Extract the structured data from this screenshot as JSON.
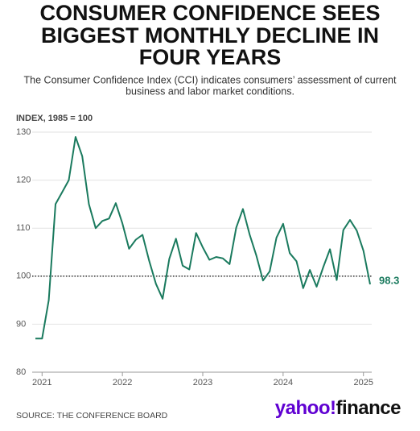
{
  "chart_data": {
    "type": "line",
    "title": [
      "CONSUMER CONFIDENCE SEES",
      "BIGGEST MONTHLY DECLINE IN",
      "FOUR YEARS"
    ],
    "subtitle": [
      "The Consumer Confidence Index (CCI) indicates consumers’ assessment of current",
      "business and labor market conditions."
    ],
    "y_label": "INDEX, 1985 = 100",
    "source": "SOURCE: THE CONFERENCE BOARD",
    "logo": [
      "yahoo!",
      "finance"
    ],
    "annotation": "98.3",
    "hline": 100,
    "x": [
      2020.917,
      2021,
      2021.083,
      2021.167,
      2021.25,
      2021.333,
      2021.417,
      2021.5,
      2021.583,
      2021.667,
      2021.75,
      2021.833,
      2021.917,
      2022,
      2022.083,
      2022.167,
      2022.25,
      2022.333,
      2022.417,
      2022.5,
      2022.583,
      2022.667,
      2022.75,
      2022.833,
      2022.917,
      2023,
      2023.083,
      2023.167,
      2023.25,
      2023.333,
      2023.417,
      2023.5,
      2023.583,
      2023.667,
      2023.75,
      2023.833,
      2023.917,
      2024,
      2024.083,
      2024.167,
      2024.25,
      2024.333,
      2024.417,
      2024.5,
      2024.583,
      2024.667,
      2024.75,
      2024.833,
      2024.917,
      2025,
      2025.083
    ],
    "series": [
      {
        "name": "Consumer Confidence Index",
        "color": "#1a7a5e",
        "values": [
          87,
          87,
          95,
          115,
          117.5,
          120,
          129,
          125,
          115,
          110,
          111.5,
          112,
          115.2,
          111,
          105.7,
          107.6,
          108.6,
          103.2,
          98.4,
          95.3,
          103.6,
          107.8,
          102.2,
          101.4,
          109,
          106,
          103.4,
          104,
          103.7,
          102.5,
          110.1,
          114,
          108.7,
          104.3,
          99.1,
          101,
          108,
          110.9,
          104.8,
          103.1,
          97.5,
          101.3,
          97.8,
          101.9,
          105.6,
          99.2,
          109.6,
          111.7,
          109.5,
          105.3,
          98.3
        ]
      }
    ],
    "xlim": [
      2020.917,
      2025.083
    ],
    "xticks": [
      2021,
      2022,
      2023,
      2024,
      2025
    ],
    "ylim": [
      80,
      130
    ],
    "yticks": [
      80,
      90,
      100,
      110,
      120,
      130
    ],
    "grid": true
  }
}
